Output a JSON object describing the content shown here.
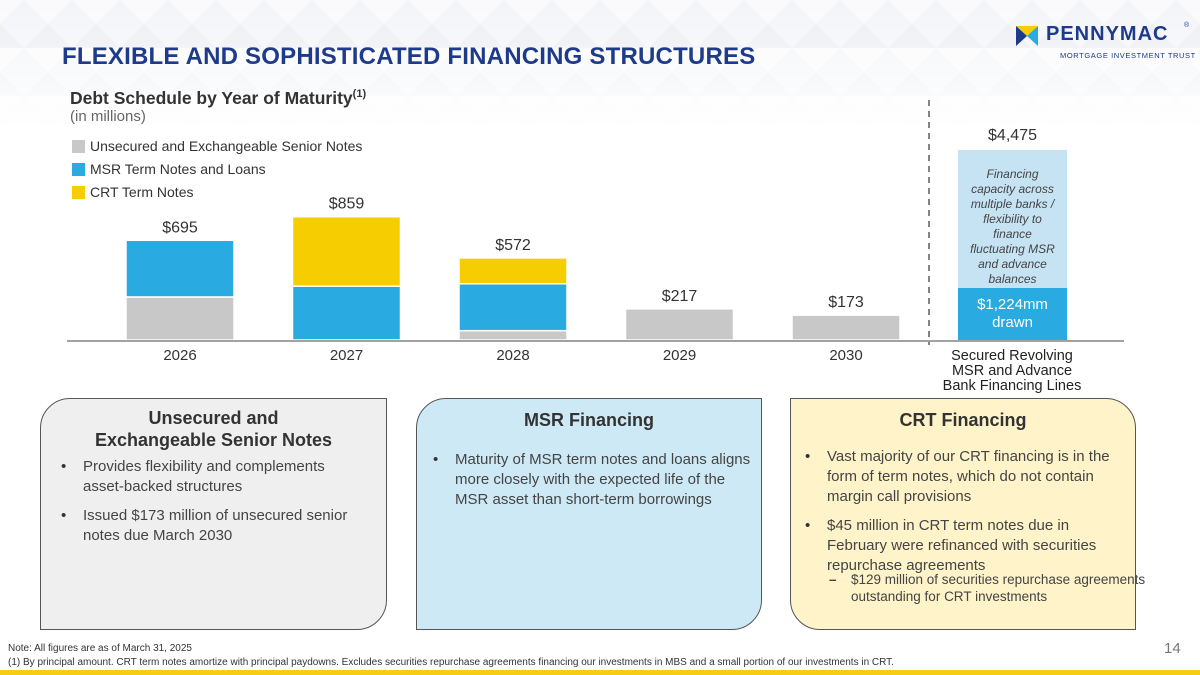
{
  "title": "FLEXIBLE AND SOPHISTICATED FINANCING STRUCTURES",
  "logo": {
    "name": "PENNYMAC",
    "tagline": "MORTGAGE INVESTMENT TRUST",
    "reg": "®"
  },
  "chart_title": "Debt Schedule by Year of Maturity",
  "chart_title_sup": "(1)",
  "chart_subtitle": "(in millions)",
  "colors": {
    "unsecured": "#c8c8c8",
    "msr": "#29abe2",
    "crt": "#f5cd00",
    "revolver_light": "#c5e3f3",
    "title": "#1e3a8a"
  },
  "chart_data": {
    "type": "bar",
    "stacked": true,
    "categories": [
      "2026",
      "2027",
      "2028",
      "2029",
      "2030"
    ],
    "series": [
      {
        "name": "Unsecured and Exchangeable Senior Notes",
        "values": [
          300,
          0,
          65,
          217,
          173
        ]
      },
      {
        "name": "MSR Term Notes and Loans",
        "values": [
          395,
          375,
          327,
          0,
          0
        ]
      },
      {
        "name": "CRT Term Notes",
        "values": [
          0,
          484,
          180,
          0,
          0
        ]
      }
    ],
    "totals": [
      "$695",
      "$859",
      "$572",
      "$217",
      "$173"
    ],
    "ylim": [
      0,
      1000
    ],
    "revolver": {
      "category": "Secured Revolving MSR and Advance Bank Financing Lines",
      "category_lines": [
        "Secured Revolving",
        "MSR and Advance",
        "Bank Financing Lines"
      ],
      "total_label": "$4,475",
      "capacity_lines": [
        "Financing",
        "capacity across",
        "multiple banks /",
        "flexibility to",
        "finance",
        "fluctuating MSR",
        "and advance",
        "balances"
      ],
      "drawn_lines": [
        "$1,224mm",
        "drawn"
      ],
      "capacity_value": 4475,
      "drawn_value": 1224
    }
  },
  "cards": [
    {
      "title_lines": [
        "Unsecured and",
        "Exchangeable Senior Notes"
      ],
      "bullets": [
        "Provides flexibility and complements asset-backed structures",
        "Issued $173 million of unsecured senior notes due March 2030"
      ]
    },
    {
      "title_lines": [
        "MSR Financing"
      ],
      "bullets": [
        "Maturity of MSR term notes and loans aligns more closely with the expected life of the MSR asset than short-term borrowings"
      ]
    },
    {
      "title_lines": [
        "CRT Financing"
      ],
      "bullets": [
        "Vast majority of our CRT financing is in the form of term notes, which do not contain margin call provisions",
        "$45 million in CRT term notes due in February were refinanced with securities repurchase agreements"
      ],
      "sub_bullet": "$129 million of securities repurchase agreements outstanding for CRT investments"
    }
  ],
  "note": "Note: All figures are as of March 31, 2025",
  "footnote": "(1) By principal amount. CRT term notes amortize with principal paydowns. Excludes securities repurchase agreements financing our investments in MBS and a small portion of our investments in CRT.",
  "page_number": "14"
}
